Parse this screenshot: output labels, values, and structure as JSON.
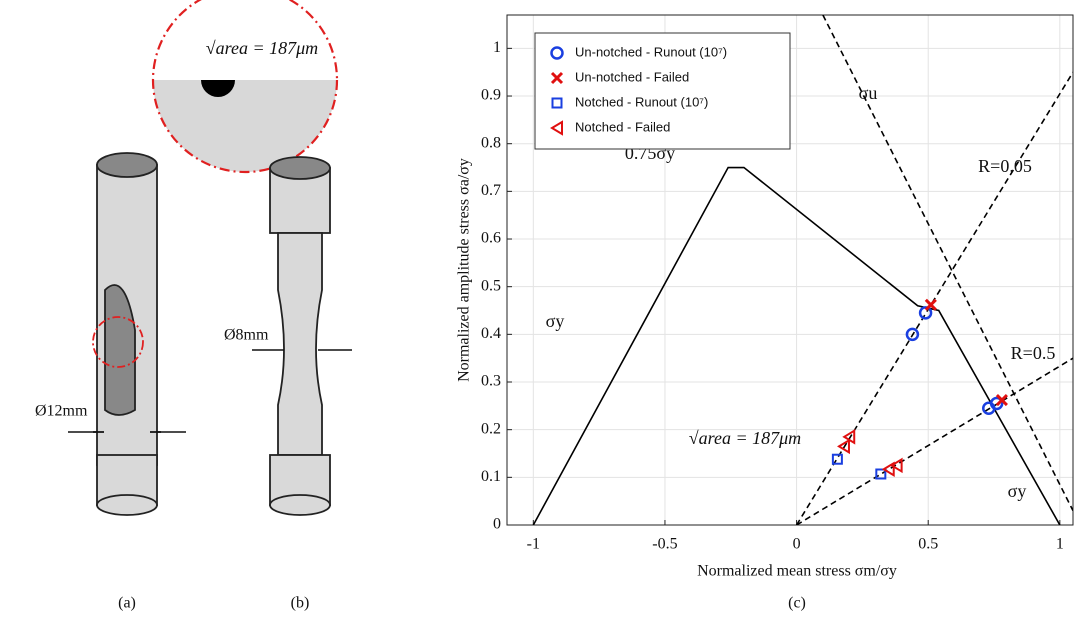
{
  "chart_data": {
    "type": "scatter",
    "xlabel": "Normalized mean stress σm/σy",
    "ylabel": "Normalized amplitude stress σa/σy",
    "xlim": [
      -1.1,
      1.05
    ],
    "ylim": [
      0,
      1.07
    ],
    "xticks": [
      -1,
      -0.5,
      0,
      0.5,
      1
    ],
    "yticks": [
      0,
      0.1,
      0.2,
      0.3,
      0.4,
      0.5,
      0.6,
      0.7,
      0.8,
      0.9,
      1
    ],
    "grid": true,
    "legend": "upper left",
    "curves": [
      {
        "color": "#000000",
        "dashed": false,
        "x": [
          -1,
          -0.26,
          -0.2,
          0.46,
          0.54,
          1
        ],
        "values": [
          0,
          0.75,
          0.75,
          0.46,
          0.45,
          0
        ]
      },
      {
        "color": "#000000",
        "dashed": true,
        "x": [
          0.1,
          1.05
        ],
        "values": [
          1.07,
          0.03
        ]
      },
      {
        "color": "#000000",
        "dashed": true,
        "x": [
          0,
          1.05
        ],
        "values": [
          0,
          0.95
        ]
      },
      {
        "color": "#000000",
        "dashed": true,
        "x": [
          0,
          1.05
        ],
        "values": [
          0,
          0.35
        ]
      }
    ],
    "series": [
      {
        "name": "Un-notched - Runout (10⁷)",
        "color": "#1a3fe0",
        "marker": "circle",
        "x": [
          0.49,
          0.44,
          0.73,
          0.76
        ],
        "values": [
          0.445,
          0.4,
          0.245,
          0.255
        ]
      },
      {
        "name": "Un-notched - Failed",
        "color": "#e01010",
        "marker": "cross",
        "x": [
          0.51,
          0.78
        ],
        "values": [
          0.462,
          0.262
        ]
      },
      {
        "name": "Notched - Runout (10⁷)",
        "color": "#1a3fe0",
        "marker": "square",
        "x": [
          0.155,
          0.32
        ],
        "values": [
          0.138,
          0.107
        ]
      },
      {
        "name": "Notched - Failed",
        "color": "#e01010",
        "marker": "triangle",
        "x": [
          0.18,
          0.2,
          0.35,
          0.38
        ],
        "values": [
          0.165,
          0.185,
          0.117,
          0.125
        ]
      }
    ],
    "annotations": [
      "σu",
      "R=0.05",
      "R=0.5",
      "0.75σy",
      "σy",
      "σy",
      "√area = 187μm"
    ]
  },
  "panel_labels": [
    "(a)",
    "(b)",
    "(c)"
  ],
  "dimensions": [
    "Ø12mm",
    "Ø8mm"
  ],
  "defect_label": "√area = 187μm"
}
